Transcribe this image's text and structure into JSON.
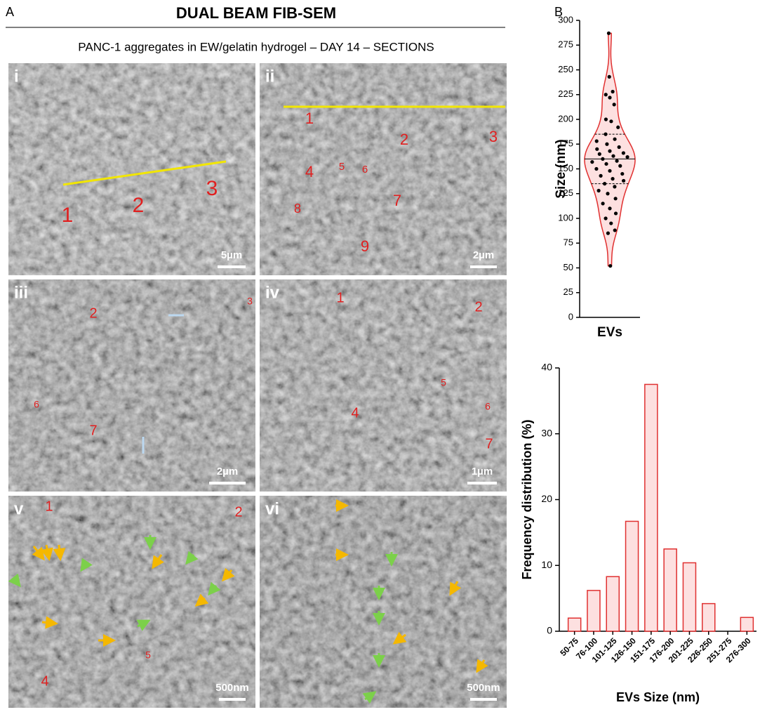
{
  "panel_a": {
    "label": "A",
    "title": "DUAL BEAM FIB-SEM",
    "subtitle": "PANC-1 aggregates in EW/gelatin hydrogel – DAY 14 – SECTIONS",
    "images": [
      {
        "label": "i",
        "scale_bar": "5µm",
        "markers": [
          "1",
          "2",
          "3"
        ]
      },
      {
        "label": "ii",
        "scale_bar": "2µm",
        "markers": [
          "1",
          "2",
          "3",
          "4",
          "5",
          "6",
          "7",
          "8",
          "9"
        ]
      },
      {
        "label": "iii",
        "scale_bar": "2µm",
        "markers": [
          "2",
          "3",
          "6",
          "7"
        ]
      },
      {
        "label": "iv",
        "scale_bar": "1µm",
        "markers": [
          "1",
          "2",
          "5",
          "6",
          "4",
          "7"
        ]
      },
      {
        "label": "v",
        "scale_bar": "500nm",
        "markers": [
          "1",
          "2",
          "4",
          "5"
        ]
      },
      {
        "label": "vi",
        "scale_bar": "500nm",
        "markers": []
      }
    ]
  },
  "chart_data": [
    {
      "type": "violin",
      "panel_label": "B",
      "category": "EVs",
      "y_label": "Size (nm)",
      "color": "#e03030",
      "fill_color": "#fde0e0",
      "values": [
        287,
        243,
        228,
        225,
        222,
        215,
        200,
        198,
        192,
        185,
        180,
        178,
        175,
        172,
        170,
        168,
        166,
        165,
        163,
        162,
        160,
        158,
        157,
        155,
        153,
        150,
        148,
        145,
        143,
        140,
        138,
        135,
        132,
        128,
        125,
        120,
        115,
        110,
        105,
        100,
        95,
        88,
        85,
        52
      ],
      "median": 160,
      "quartiles": [
        135,
        185
      ],
      "ylim": [
        0,
        300
      ],
      "yticks": [
        0,
        25,
        50,
        75,
        100,
        125,
        150,
        175,
        200,
        225,
        250,
        275,
        300
      ]
    },
    {
      "type": "bar",
      "x_label": "EVs Size (nm)",
      "y_label": "Frequency distribution (%)",
      "color": "#e03030",
      "fill_color": "#fde0e0",
      "categories": [
        "50-75",
        "76-100",
        "101-125",
        "126-150",
        "151-175",
        "176-200",
        "201-225",
        "226-250",
        "251-275",
        "276-300"
      ],
      "values": [
        2,
        6.2,
        8.3,
        16.7,
        37.5,
        12.5,
        10.4,
        4.2,
        0,
        2.1
      ],
      "ylim": [
        0,
        40
      ],
      "yticks": [
        0,
        10,
        20,
        30,
        40
      ]
    }
  ]
}
